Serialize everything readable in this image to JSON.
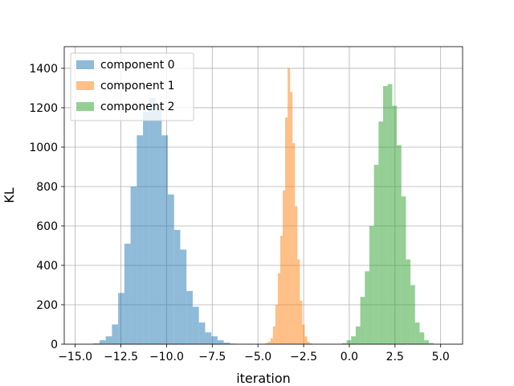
{
  "chart_data": {
    "type": "bar",
    "subtype": "overlapping-histogram",
    "xlabel": "iteration",
    "ylabel": "KL",
    "xlim": [
      -15.6,
      6.2
    ],
    "ylim": [
      0,
      1510
    ],
    "xticks": [
      -15.0,
      -12.5,
      -10.0,
      -7.5,
      -5.0,
      -2.5,
      0.0,
      2.5,
      5.0
    ],
    "xtick_labels": [
      "−15.0",
      "−12.5",
      "−10.0",
      "−7.5",
      "−5.0",
      "−2.5",
      "0.0",
      "2.5",
      "5.0"
    ],
    "yticks": [
      0,
      200,
      400,
      600,
      800,
      1000,
      1200,
      1400
    ],
    "ytick_labels": [
      "0",
      "200",
      "400",
      "600",
      "800",
      "1000",
      "1200",
      "1400"
    ],
    "grid": true,
    "legend_position": "top-left",
    "series": [
      {
        "name": "component 0",
        "color": "#1f77b4",
        "alpha": 0.5,
        "bin_width": 0.34,
        "bins": [
          [
            -14.35,
            2
          ],
          [
            -14.01,
            4
          ],
          [
            -13.67,
            20
          ],
          [
            -13.33,
            40
          ],
          [
            -12.99,
            100
          ],
          [
            -12.65,
            260
          ],
          [
            -12.31,
            510
          ],
          [
            -11.97,
            800
          ],
          [
            -11.63,
            1060
          ],
          [
            -11.29,
            1180
          ],
          [
            -10.95,
            1250
          ],
          [
            -10.61,
            1200
          ],
          [
            -10.27,
            1060
          ],
          [
            -9.93,
            760
          ],
          [
            -9.59,
            580
          ],
          [
            -9.25,
            480
          ],
          [
            -8.91,
            270
          ],
          [
            -8.57,
            190
          ],
          [
            -8.23,
            110
          ],
          [
            -7.89,
            60
          ],
          [
            -7.55,
            40
          ],
          [
            -7.21,
            20
          ],
          [
            -6.87,
            8
          ],
          [
            -6.53,
            3
          ]
        ]
      },
      {
        "name": "component 1",
        "color": "#ff7f0e",
        "alpha": 0.5,
        "bin_width": 0.134,
        "bins": [
          [
            -4.85,
            1
          ],
          [
            -4.716,
            2
          ],
          [
            -4.582,
            6
          ],
          [
            -4.448,
            12
          ],
          [
            -4.314,
            30
          ],
          [
            -4.18,
            90
          ],
          [
            -4.046,
            200
          ],
          [
            -3.912,
            360
          ],
          [
            -3.778,
            550
          ],
          [
            -3.644,
            780
          ],
          [
            -3.51,
            1150
          ],
          [
            -3.376,
            1400
          ],
          [
            -3.242,
            1280
          ],
          [
            -3.108,
            1020
          ],
          [
            -2.974,
            700
          ],
          [
            -2.84,
            430
          ],
          [
            -2.706,
            220
          ],
          [
            -2.572,
            100
          ],
          [
            -2.438,
            40
          ],
          [
            -2.304,
            12
          ],
          [
            -2.17,
            4
          ]
        ]
      },
      {
        "name": "component 2",
        "color": "#2ca02c",
        "alpha": 0.5,
        "bin_width": 0.25,
        "bins": [
          [
            -0.4,
            5
          ],
          [
            -0.15,
            20
          ],
          [
            0.1,
            40
          ],
          [
            0.35,
            90
          ],
          [
            0.6,
            240
          ],
          [
            0.85,
            370
          ],
          [
            1.1,
            600
          ],
          [
            1.35,
            910
          ],
          [
            1.6,
            1130
          ],
          [
            1.85,
            1310
          ],
          [
            2.1,
            1320
          ],
          [
            2.35,
            1210
          ],
          [
            2.6,
            1010
          ],
          [
            2.85,
            750
          ],
          [
            3.1,
            430
          ],
          [
            3.35,
            300
          ],
          [
            3.6,
            110
          ],
          [
            3.85,
            60
          ],
          [
            4.1,
            20
          ],
          [
            4.35,
            6
          ]
        ]
      }
    ]
  }
}
